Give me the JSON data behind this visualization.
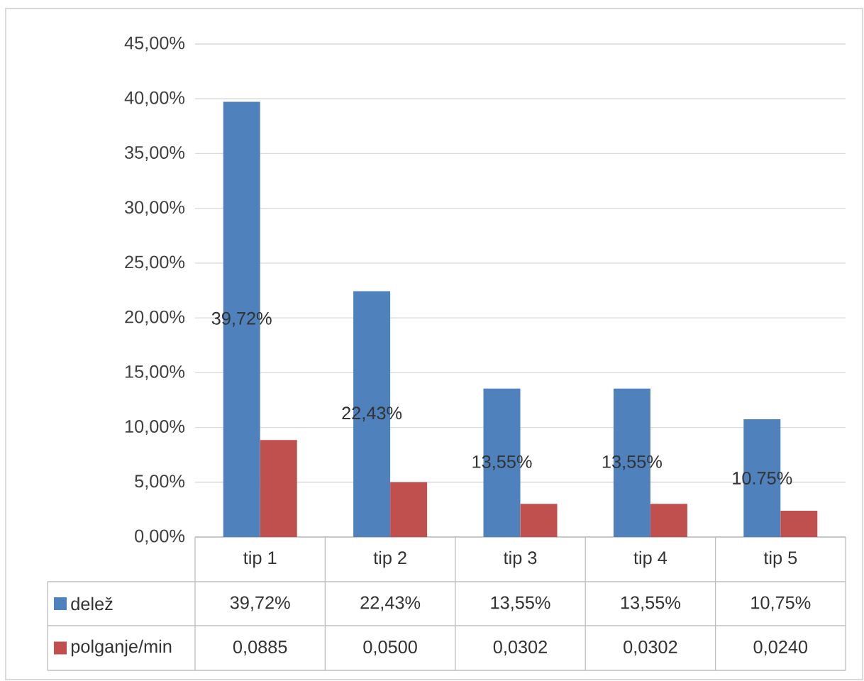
{
  "chart_data": {
    "type": "bar",
    "categories": [
      "tip 1",
      "tip 2",
      "tip 3",
      "tip 4",
      "tip 5"
    ],
    "series": [
      {
        "name": "delež",
        "color": "#4f81bd",
        "values": [
          0.3972,
          0.2243,
          0.1355,
          0.1355,
          0.1075
        ],
        "value_labels": [
          "39,72%",
          "22,43%",
          "13,55%",
          "13,55%",
          "10,75%"
        ]
      },
      {
        "name": "polganje/min",
        "color": "#c0504d",
        "values": [
          0.0885,
          0.05,
          0.0302,
          0.0302,
          0.024
        ],
        "value_labels": [
          "0,0885",
          "0,0500",
          "0,0302",
          "0,0302",
          "0,0240"
        ]
      }
    ],
    "ylim": [
      0,
      0.45
    ],
    "yticks": [
      {
        "value": 0,
        "label": "0,00%"
      },
      {
        "value": 0.05,
        "label": "5,00%"
      },
      {
        "value": 0.1,
        "label": "10,00%"
      },
      {
        "value": 0.15,
        "label": "15,00%"
      },
      {
        "value": 0.2,
        "label": "20,00%"
      },
      {
        "value": 0.25,
        "label": "25,00%"
      },
      {
        "value": 0.3,
        "label": "30,00%"
      },
      {
        "value": 0.35,
        "label": "35,00%"
      },
      {
        "value": 0.4,
        "label": "40,00%"
      },
      {
        "value": 0.45,
        "label": "45,00%"
      }
    ],
    "grid": "y",
    "legend": "bottom",
    "annotations": [
      "39,72%",
      "22,43%",
      "13,55%",
      "13,55%",
      "10.75%"
    ]
  }
}
